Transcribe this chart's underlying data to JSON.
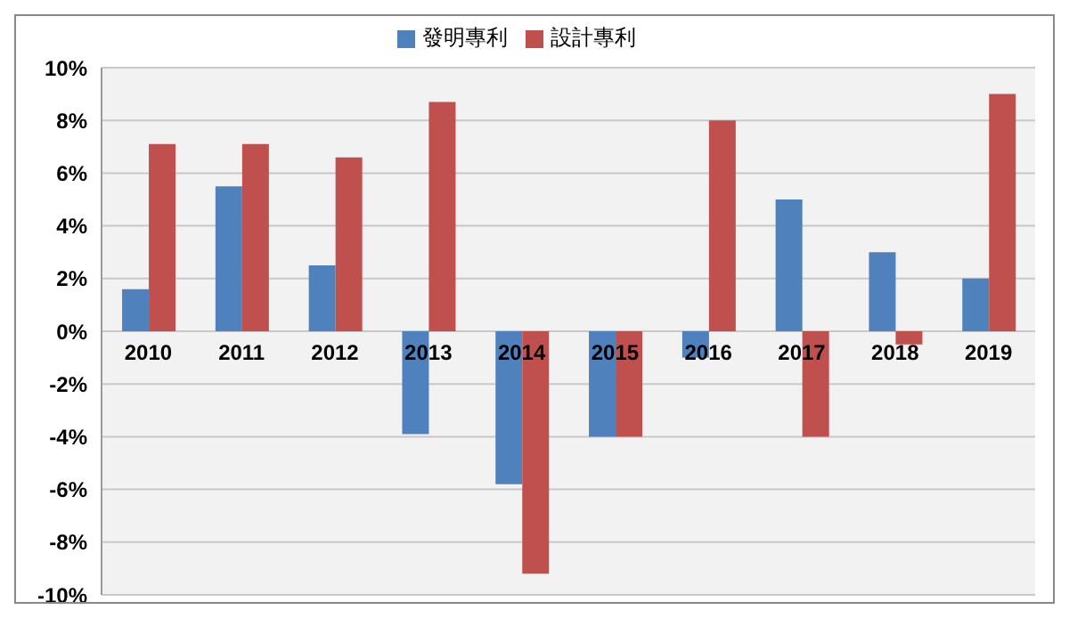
{
  "chart_data": {
    "type": "bar",
    "categories": [
      "2010",
      "2011",
      "2012",
      "2013",
      "2014",
      "2015",
      "2016",
      "2017",
      "2018",
      "2019"
    ],
    "series": [
      {
        "name": "發明專利",
        "color": "#4f81bd",
        "values": [
          1.6,
          5.5,
          2.5,
          -3.9,
          -5.8,
          -4,
          -1,
          5,
          3,
          2
        ]
      },
      {
        "name": "設計專利",
        "color": "#c0504d",
        "values": [
          7.1,
          7.1,
          6.6,
          8.7,
          -9.2,
          -4,
          8,
          -4,
          -0.5,
          9
        ]
      }
    ],
    "ylim": [
      -10,
      10
    ],
    "yticks": [
      {
        "value": -10,
        "label": "-10%"
      },
      {
        "value": -8,
        "label": "-8%"
      },
      {
        "value": -6,
        "label": "-6%"
      },
      {
        "value": -4,
        "label": "-4%"
      },
      {
        "value": -2,
        "label": "-2%"
      },
      {
        "value": 0,
        "label": "0%"
      },
      {
        "value": 2,
        "label": "2%"
      },
      {
        "value": 4,
        "label": "4%"
      },
      {
        "value": 6,
        "label": "6%"
      },
      {
        "value": 8,
        "label": "8%"
      },
      {
        "value": 10,
        "label": "10%"
      }
    ],
    "grid": "y",
    "legend": "top"
  }
}
